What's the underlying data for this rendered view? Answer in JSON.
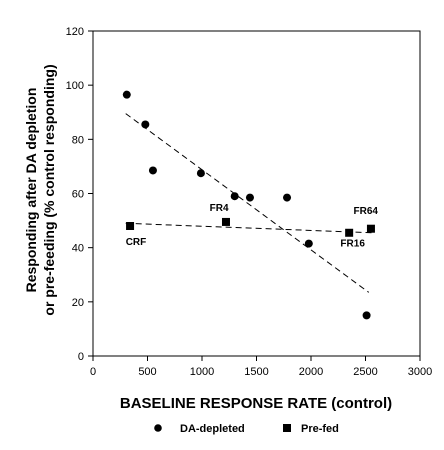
{
  "chart_data": {
    "type": "scatter",
    "title": "",
    "xlabel": "BASELINE  RESPONSE  RATE (control)",
    "ylabel_line1": "Responding after DA depletion",
    "ylabel_line2": "or pre-feeding (% control responding)",
    "xlim": [
      0,
      3000
    ],
    "ylim": [
      0,
      120
    ],
    "x_ticks": [
      "0",
      "500",
      "1000",
      "1500",
      "2000",
      "2500",
      "3000"
    ],
    "y_ticks": [
      "0",
      "20",
      "40",
      "60",
      "80",
      "100",
      "120"
    ],
    "grid": false,
    "legend_position": "bottom",
    "series": [
      {
        "name": "DA-depleted",
        "marker": "circle",
        "color": "#000000",
        "points": [
          {
            "x": 310,
            "y": 96.5
          },
          {
            "x": 480,
            "y": 85.5
          },
          {
            "x": 550,
            "y": 68.5
          },
          {
            "x": 990,
            "y": 67.5
          },
          {
            "x": 1300,
            "y": 59
          },
          {
            "x": 1440,
            "y": 58.5
          },
          {
            "x": 1780,
            "y": 58.5
          },
          {
            "x": 1980,
            "y": 41.5
          },
          {
            "x": 2510,
            "y": 15
          }
        ],
        "trend": {
          "x": [
            300,
            2530
          ],
          "y": [
            89.5,
            23.5
          ]
        }
      },
      {
        "name": "Pre-fed",
        "marker": "square",
        "color": "#000000",
        "points": [
          {
            "x": 340,
            "y": 48
          },
          {
            "x": 1220,
            "y": 49.5
          },
          {
            "x": 2350,
            "y": 45.5
          },
          {
            "x": 2550,
            "y": 47
          }
        ],
        "trend": {
          "x": [
            300,
            2560
          ],
          "y": [
            49,
            45.5
          ]
        }
      }
    ],
    "annotations": [
      {
        "text": "CRF",
        "x": 300,
        "y": 41
      },
      {
        "text": "FR4",
        "x": 1070,
        "y": 53.5
      },
      {
        "text": "FR16",
        "x": 2270,
        "y": 40.5
      },
      {
        "text": "FR64",
        "x": 2390,
        "y": 52.5
      }
    ]
  }
}
